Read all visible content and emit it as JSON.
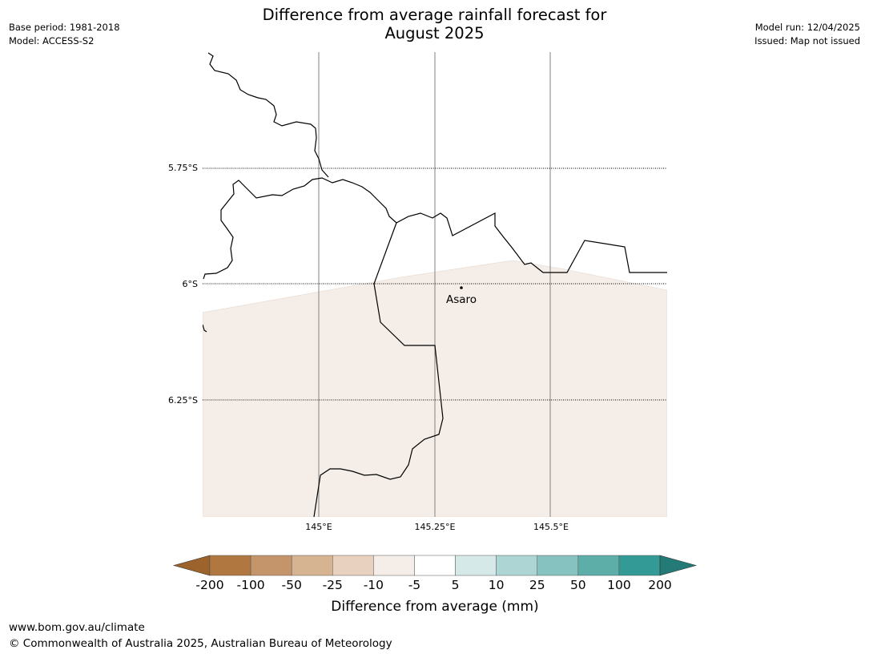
{
  "title_lines": [
    "Difference from average rainfall forecast for",
    "August 2025"
  ],
  "meta_left": {
    "base_period": "Base period: 1981-2018",
    "model": "Model: ACCESS-S2"
  },
  "meta_right": {
    "model_run": "Model run: 12/04/2025",
    "issued": "Issued: Map not issued"
  },
  "map": {
    "lat_labels": [
      "5.75°S",
      "6°S",
      "6.25°S"
    ],
    "lon_labels": [
      "145°E",
      "145.25°E",
      "145.5°E"
    ],
    "places": [
      {
        "name": "Asaro"
      }
    ],
    "forecast_fill_color": "#f5ede7"
  },
  "legend": {
    "tick_labels": [
      "-200",
      "-100",
      "-50",
      "-25",
      "-10",
      "-5",
      "5",
      "10",
      "25",
      "50",
      "100",
      "200"
    ],
    "colors": [
      "#9c642c",
      "#b07840",
      "#c4946a",
      "#d6b492",
      "#e8d2bf",
      "#f5ede7",
      "#ffffff",
      "#d6e9e9",
      "#acd5d4",
      "#86c2bf",
      "#5dada9",
      "#339a96",
      "#247a76"
    ],
    "label": "Difference from average (mm)"
  },
  "footer": {
    "url": "www.bom.gov.au/climate",
    "copyright": "© Commonwealth of Australia 2025, Australian Bureau of Meteorology"
  }
}
